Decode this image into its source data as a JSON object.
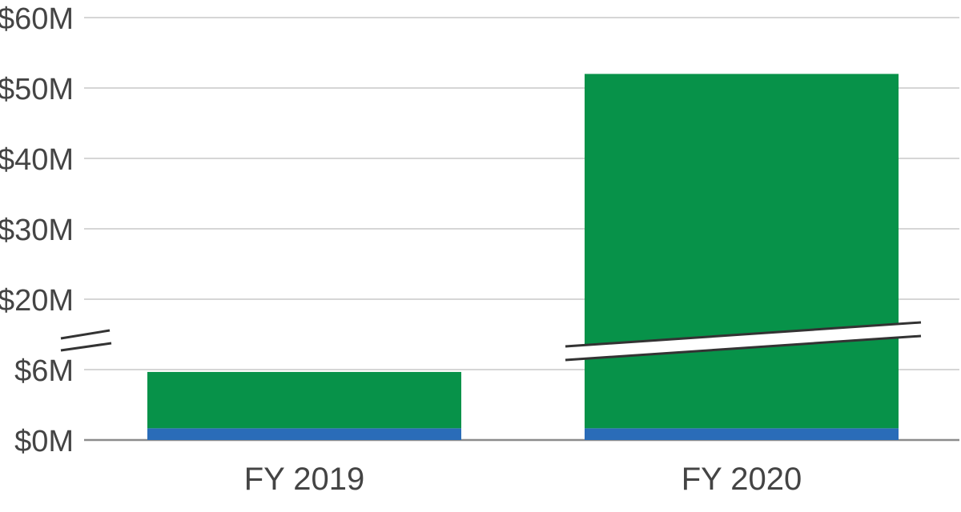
{
  "chart_data": {
    "type": "bar",
    "stacked": true,
    "broken_axis": true,
    "categories": [
      "FY 2019",
      "FY 2020"
    ],
    "series": [
      {
        "values": [
          1,
          1
        ],
        "color": "#2a6cb8"
      },
      {
        "values": [
          4.8,
          51
        ],
        "color": "#079249"
      }
    ],
    "y_ticks": [
      0,
      6,
      20,
      30,
      40,
      50,
      60
    ],
    "y_tick_labels": [
      "$0M",
      "$6M",
      "$20M",
      "$30M",
      "$40M",
      "$50M",
      "$60M"
    ],
    "ylim": [
      0,
      60
    ],
    "grid": true,
    "legend": "none",
    "axis_break_color": "#333333"
  }
}
